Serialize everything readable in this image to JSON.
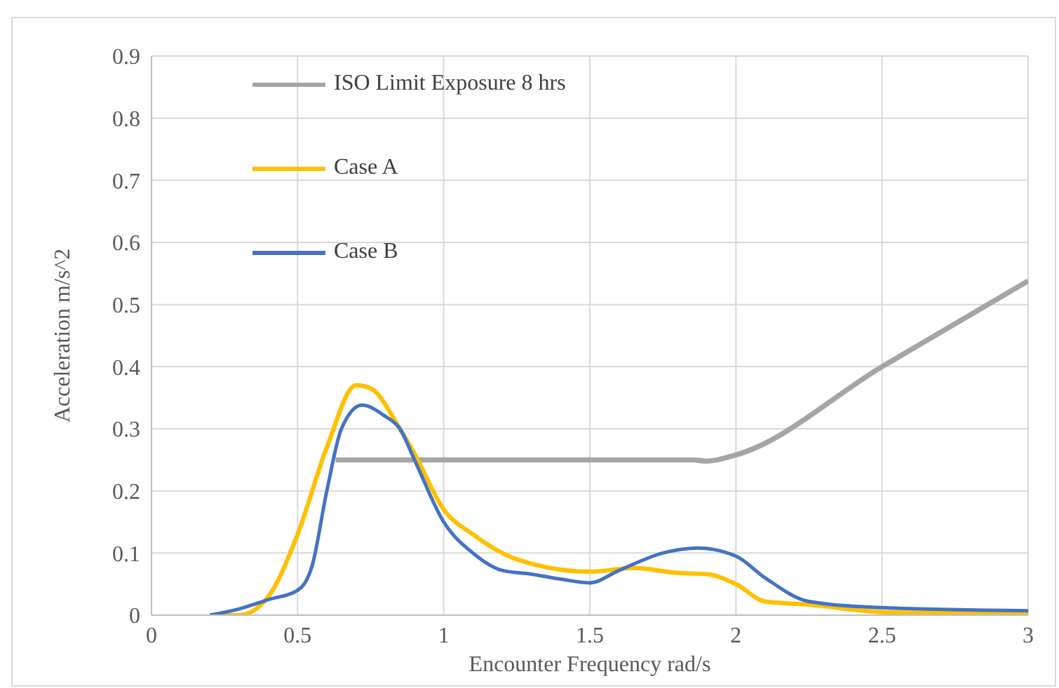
{
  "chart_data": {
    "type": "line",
    "xlabel": "Encounter Frequency rad/s",
    "ylabel": "Acceleration m/s^2",
    "xlim": [
      0,
      3
    ],
    "xticks": [
      0,
      0.5,
      1,
      1.5,
      2,
      2.5,
      3
    ],
    "ylim": [
      0,
      0.9
    ],
    "yticks": [
      0,
      0.1,
      0.2,
      0.3,
      0.4,
      0.5,
      0.6,
      0.7,
      0.8,
      0.9
    ],
    "grid": true,
    "legend": "top left",
    "marker": "none",
    "line_style": "solid",
    "series": [
      {
        "name": "ISO Limit Exposure 8 hrs",
        "color": "#a5a5a5",
        "x": [
          0.63,
          1,
          1.5,
          1.85,
          1.9,
          2,
          2.5,
          3
        ],
        "values": [
          0.25,
          0.25,
          0.25,
          0.25,
          0.248,
          0.258,
          0.4,
          0.538
        ]
      },
      {
        "name": "Case A",
        "color": "#ffc000",
        "x": [
          0.2,
          0.3,
          0.4,
          0.5,
          0.6,
          0.7,
          0.75,
          0.85,
          0.9,
          1,
          1.1,
          1.25,
          1.5,
          1.65,
          1.8,
          1.9,
          2,
          2.1,
          2.25,
          2.5,
          3
        ],
        "values": [
          0,
          0,
          0.03,
          0.13,
          0.27,
          0.37,
          0.365,
          0.3,
          0.26,
          0.17,
          0.13,
          0.09,
          0.07,
          0.076,
          0.068,
          0.066,
          0.05,
          0.022,
          0.017,
          0.005,
          0.002
        ]
      },
      {
        "name": "Case B",
        "color": "#4472c4",
        "x": [
          0.2,
          0.3,
          0.4,
          0.5,
          0.55,
          0.6,
          0.65,
          0.72,
          0.8,
          0.85,
          0.9,
          1,
          1.1,
          1.2,
          1.3,
          1.4,
          1.5,
          1.6,
          1.75,
          1.87,
          2,
          2.1,
          2.25,
          2.5,
          3
        ],
        "values": [
          0,
          0.01,
          0.025,
          0.04,
          0.08,
          0.2,
          0.3,
          0.338,
          0.32,
          0.3,
          0.25,
          0.15,
          0.1,
          0.072,
          0.066,
          0.058,
          0.052,
          0.072,
          0.1,
          0.108,
          0.095,
          0.06,
          0.022,
          0.012,
          0.007
        ]
      }
    ]
  }
}
